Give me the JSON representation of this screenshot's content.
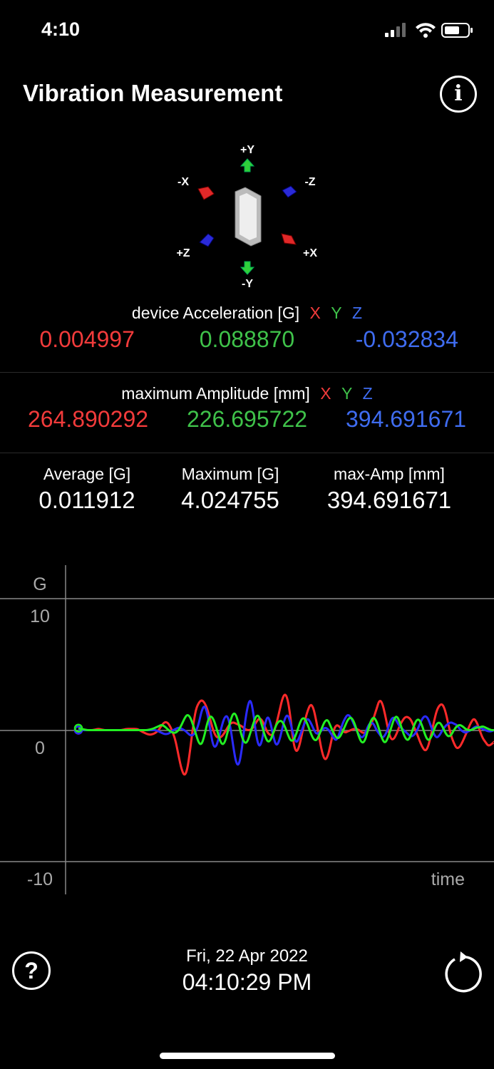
{
  "status_bar": {
    "time": "4:10"
  },
  "header": {
    "title": "Vibration Measurement"
  },
  "orientation": {
    "labels": {
      "plus_y": "+Y",
      "minus_y": "-Y",
      "minus_x": "-X",
      "plus_x": "+X",
      "minus_z": "-Z",
      "plus_z": "+Z"
    }
  },
  "device_acceleration": {
    "label": "device Acceleration [G]",
    "axes": [
      "X",
      "Y",
      "Z"
    ],
    "values": [
      "0.004997",
      "0.088870",
      "-0.032834"
    ]
  },
  "max_amplitude": {
    "label": "maximum Amplitude [mm]",
    "axes": [
      "X",
      "Y",
      "Z"
    ],
    "values": [
      "264.890292",
      "226.695722",
      "394.691671"
    ]
  },
  "stats": [
    {
      "label": "Average [G]",
      "value": "0.011912"
    },
    {
      "label": "Maximum [G]",
      "value": "4.024755"
    },
    {
      "label": "max-Amp [mm]",
      "value": "394.691671"
    }
  ],
  "chart_data": {
    "type": "line",
    "ylabel": "G",
    "xlabel": "time",
    "ylim": [
      -10,
      10
    ],
    "y_ticks": [
      "10",
      "0",
      "-10"
    ],
    "grid": true,
    "x": [
      0,
      1,
      2,
      3,
      4,
      5,
      6,
      7,
      8,
      9,
      10,
      11,
      12,
      13,
      14,
      15,
      16,
      17,
      18,
      19,
      20,
      21,
      22,
      23,
      24,
      25,
      26,
      27,
      28,
      29,
      30,
      31,
      32,
      33,
      34,
      35,
      36,
      37,
      38,
      39,
      40,
      41,
      42,
      43,
      44,
      45,
      46,
      47,
      48,
      49,
      50,
      51,
      52,
      53,
      54,
      55,
      56,
      57,
      58,
      59,
      60,
      61,
      62,
      63,
      64,
      65,
      66,
      67,
      68,
      69,
      70,
      71,
      72,
      73,
      74,
      75,
      76,
      77,
      78,
      79,
      80,
      81,
      82,
      83,
      84,
      85,
      86,
      87,
      88,
      89,
      90,
      91,
      92,
      93,
      94,
      95,
      96,
      97,
      98,
      99,
      100,
      101,
      102,
      103,
      104,
      105,
      106,
      107,
      108,
      109,
      110,
      111,
      112,
      113,
      114,
      115,
      116,
      117,
      118,
      119,
      120,
      121,
      122,
      123,
      124,
      125,
      126,
      127,
      128,
      129,
      130,
      131,
      132,
      133,
      134,
      135,
      136,
      137,
      138,
      139,
      140,
      141,
      142,
      143,
      144,
      145
    ],
    "series": [
      {
        "color": "#ff2a2a",
        "values": [
          0,
          0,
          0,
          0,
          0,
          0,
          0.05,
          0.1,
          0.05,
          0,
          0,
          0,
          0,
          0,
          0,
          0,
          0.05,
          0.1,
          0.1,
          0.1,
          0.1,
          0.05,
          -0.1,
          -0.2,
          -0.3,
          -0.35,
          -0.3,
          -0.2,
          0,
          0.35,
          0.6,
          0.6,
          0.3,
          -0.2,
          -0.9,
          -2.0,
          -3.0,
          -3.5,
          -3.0,
          -1.5,
          0.3,
          1.6,
          2.1,
          2.3,
          2.1,
          1.6,
          0.8,
          0,
          -0.5,
          -0.6,
          -0.5,
          -0.2,
          0.2,
          0.5,
          0.6,
          0.5,
          0.4,
          0.3,
          0.1,
          0,
          0,
          0.2,
          0.6,
          0.9,
          0.8,
          0.3,
          -0.2,
          -0.4,
          -0.3,
          0.4,
          1.3,
          2.3,
          2.8,
          2.4,
          1.0,
          -1.0,
          -1.7,
          -1.3,
          -0.3,
          0.7,
          1.5,
          2.0,
          1.7,
          0.7,
          -0.5,
          -1.7,
          -2.3,
          -2.0,
          -1.1,
          0,
          0.4,
          0.3,
          0,
          -0.2,
          -0.1,
          0,
          0.1,
          0.1,
          0,
          -0.2,
          -0.2,
          0,
          0.4,
          0.9,
          1.6,
          2.3,
          2.1,
          1.2,
          0.1,
          -0.7,
          -0.7,
          -0.3,
          0.3,
          0.7,
          1.0,
          1.0,
          0.8,
          0.3,
          -0.2,
          -0.8,
          -1.3,
          -1.6,
          -1.3,
          -0.4,
          0.6,
          1.5,
          1.9,
          2.0,
          1.5,
          0.5,
          -0.4,
          -1.0,
          -1.4,
          -1.3,
          -0.9,
          -0.4,
          0.1,
          0.6,
          0.9,
          0.6,
          0,
          -0.6,
          -0.9,
          -1.2,
          -1.1,
          -0.9
        ]
      },
      {
        "color": "#2a2aff",
        "values": [
          0,
          0,
          0,
          0,
          0,
          0,
          0,
          0,
          0,
          0,
          0,
          0,
          0,
          0,
          0,
          0,
          0,
          0,
          0,
          0,
          0,
          0,
          0,
          0,
          0,
          0,
          0,
          0,
          -0.1,
          -0.2,
          -0.3,
          -0.3,
          -0.2,
          0,
          0.1,
          0.2,
          0.1,
          0,
          -0.2,
          -0.4,
          -0.4,
          -0.1,
          0.5,
          1.5,
          1.9,
          1.3,
          0,
          -1.2,
          -1.3,
          -0.6,
          0.3,
          1.0,
          1.1,
          0.3,
          -1.2,
          -2.5,
          -2.7,
          -1.5,
          0.4,
          1.8,
          2.4,
          1.4,
          -0.4,
          -1.3,
          -0.9,
          0.4,
          1.1,
          0.6,
          -0.5,
          -1.2,
          -0.9,
          0,
          0.9,
          1.2,
          0.6,
          -0.4,
          -1.0,
          -0.6,
          0,
          0.6,
          0.9,
          0.6,
          0.1,
          -0.3,
          -0.2,
          0,
          0.2,
          0.1,
          -0.2,
          -0.6,
          -0.8,
          -0.3,
          0.4,
          0.9,
          1.2,
          1.0,
          0.5,
          0,
          -0.4,
          -0.6,
          -0.3,
          0.3,
          0.6,
          0.5,
          0,
          -0.3,
          -0.6,
          -0.4,
          0.1,
          0.8,
          1.0,
          0.7,
          0.3,
          0.1,
          -0.1,
          -0.3,
          -0.5,
          -0.4,
          -0.1,
          0.4,
          0.9,
          1.1,
          0.9,
          0.3,
          -0.3,
          -0.6,
          -0.4,
          0,
          0.3,
          0.5,
          0.6,
          0.5,
          0.4,
          0.1,
          -0.1,
          -0.2,
          -0.1,
          0,
          0.2,
          0.3,
          0.2,
          0.1,
          0,
          -0.1,
          -0.1,
          0
        ]
      },
      {
        "color": "#22ee22",
        "values": [
          0.15,
          0.1,
          0.05,
          0,
          0,
          0,
          0,
          0,
          0,
          0,
          0,
          0,
          0,
          0,
          0,
          0,
          0,
          0,
          0,
          0,
          0,
          0,
          0,
          0,
          0,
          0.05,
          0.1,
          0.2,
          0.3,
          0.4,
          0.3,
          0.1,
          -0.1,
          -0.2,
          -0.2,
          0,
          0.4,
          0.9,
          1.2,
          1.0,
          0.4,
          -0.3,
          -1.0,
          -1.1,
          -0.4,
          0.6,
          1.1,
          0.9,
          0.3,
          -0.5,
          -1.1,
          -1.0,
          -0.2,
          0.7,
          1.3,
          1.2,
          0.4,
          -0.5,
          -1.0,
          -0.9,
          -0.2,
          0.5,
          1.1,
          1.1,
          0.4,
          -0.4,
          -0.9,
          -0.8,
          -0.2,
          0.4,
          0.7,
          0.7,
          0.3,
          -0.3,
          -0.8,
          -0.8,
          -0.3,
          0.4,
          0.9,
          0.9,
          0.4,
          -0.2,
          -0.7,
          -0.8,
          -0.4,
          0.2,
          0.7,
          0.8,
          0.3,
          -0.2,
          -0.6,
          -0.6,
          -0.2,
          0.3,
          0.8,
          1.0,
          0.7,
          0.1,
          -0.6,
          -1.0,
          -0.8,
          0,
          0.7,
          1.0,
          0.7,
          0,
          -0.7,
          -1.0,
          -0.6,
          0.1,
          0.8,
          1.1,
          0.7,
          0,
          -0.6,
          -0.8,
          -0.4,
          0.3,
          0.8,
          0.8,
          0.3,
          -0.4,
          -0.8,
          -0.6,
          0,
          0.5,
          0.6,
          0.3,
          -0.2,
          -0.5,
          -0.4,
          0,
          0.3,
          0.4,
          0.3,
          0.1,
          0,
          0,
          0.1,
          0.2,
          0.2,
          0.3,
          0.2,
          0.1,
          0,
          0
        ]
      }
    ]
  },
  "footer": {
    "date": "Fri, 22 Apr 2022",
    "time": "04:10:29 PM"
  }
}
